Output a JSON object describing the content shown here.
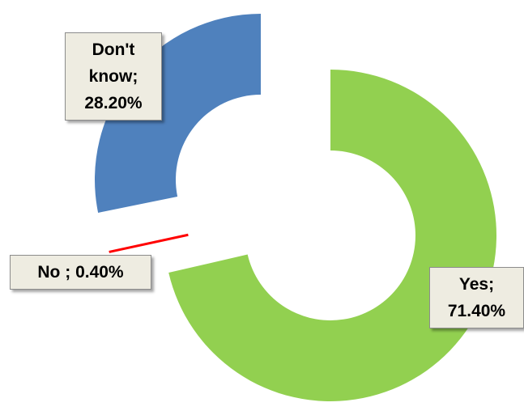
{
  "chart_data": {
    "type": "donut",
    "categories": [
      "Yes;",
      "No ;",
      "Don't know;"
    ],
    "values": [
      71.4,
      0.4,
      28.2
    ],
    "value_labels": [
      "71.40%",
      "0.40%",
      "28.20%"
    ],
    "colors": [
      "#92d050",
      "#ff0000",
      "#4f81bd"
    ]
  }
}
